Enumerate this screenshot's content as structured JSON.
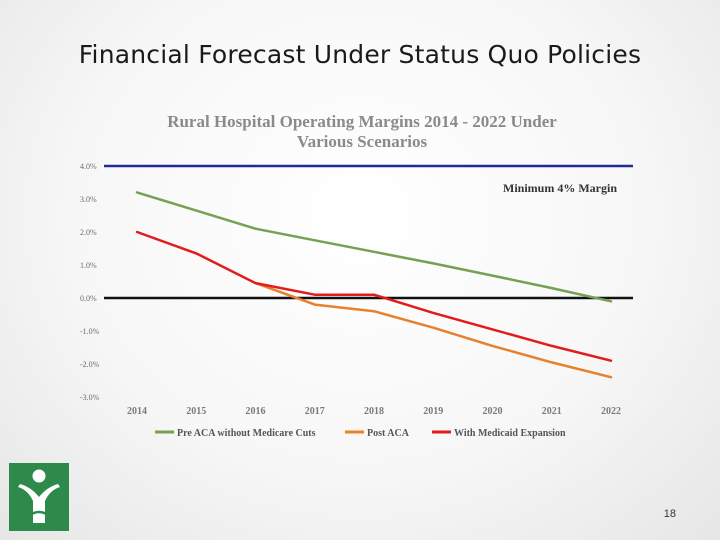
{
  "slide": {
    "title": "Financial Forecast Under Status Quo Policies",
    "page_number": "18"
  },
  "colors": {
    "pre_aca": "#77a152",
    "post_aca": "#e8802c",
    "medicaid": "#e21c1c",
    "min_margin": "#22299b",
    "zero_line": "#111111",
    "logo": "#2e8a4b"
  },
  "chart_data": {
    "type": "line",
    "title_line1": "Rural Hospital Operating Margins 2014 - 2022 Under",
    "title_line2": "Various Scenarios",
    "x": [
      "2014",
      "2015",
      "2016",
      "2017",
      "2018",
      "2019",
      "2020",
      "2021",
      "2022"
    ],
    "y_ticks": [
      "4.0%",
      "3.0%",
      "2.0%",
      "1.0%",
      "0.0%",
      "-1.0%",
      "-2.0%",
      "-3.0%"
    ],
    "y_tick_values": [
      4,
      3,
      2,
      1,
      0,
      -1,
      -2,
      -3
    ],
    "ylim": [
      -3,
      4
    ],
    "series": [
      {
        "name": "Pre ACA without Medicare Cuts",
        "color_key": "pre_aca",
        "values": [
          3.2,
          2.65,
          2.1,
          1.75,
          1.4,
          1.05,
          0.68,
          0.3,
          -0.1
        ]
      },
      {
        "name": "Post ACA",
        "color_key": "post_aca",
        "values": [
          null,
          null,
          0.45,
          -0.2,
          -0.4,
          -0.9,
          -1.45,
          -1.95,
          -2.4
        ]
      },
      {
        "name": "With Medicaid Expansion",
        "color_key": "medicaid",
        "values": [
          2.0,
          1.35,
          0.45,
          0.1,
          0.1,
          -0.45,
          -0.95,
          -1.45,
          -1.9
        ]
      }
    ],
    "reference_lines": [
      {
        "value": 4,
        "label": "Minimum 4% Margin",
        "color_key": "min_margin"
      },
      {
        "value": 0,
        "label": "",
        "color_key": "zero_line"
      }
    ],
    "annotation": "Minimum 4% Margin",
    "legend_position": "bottom"
  }
}
